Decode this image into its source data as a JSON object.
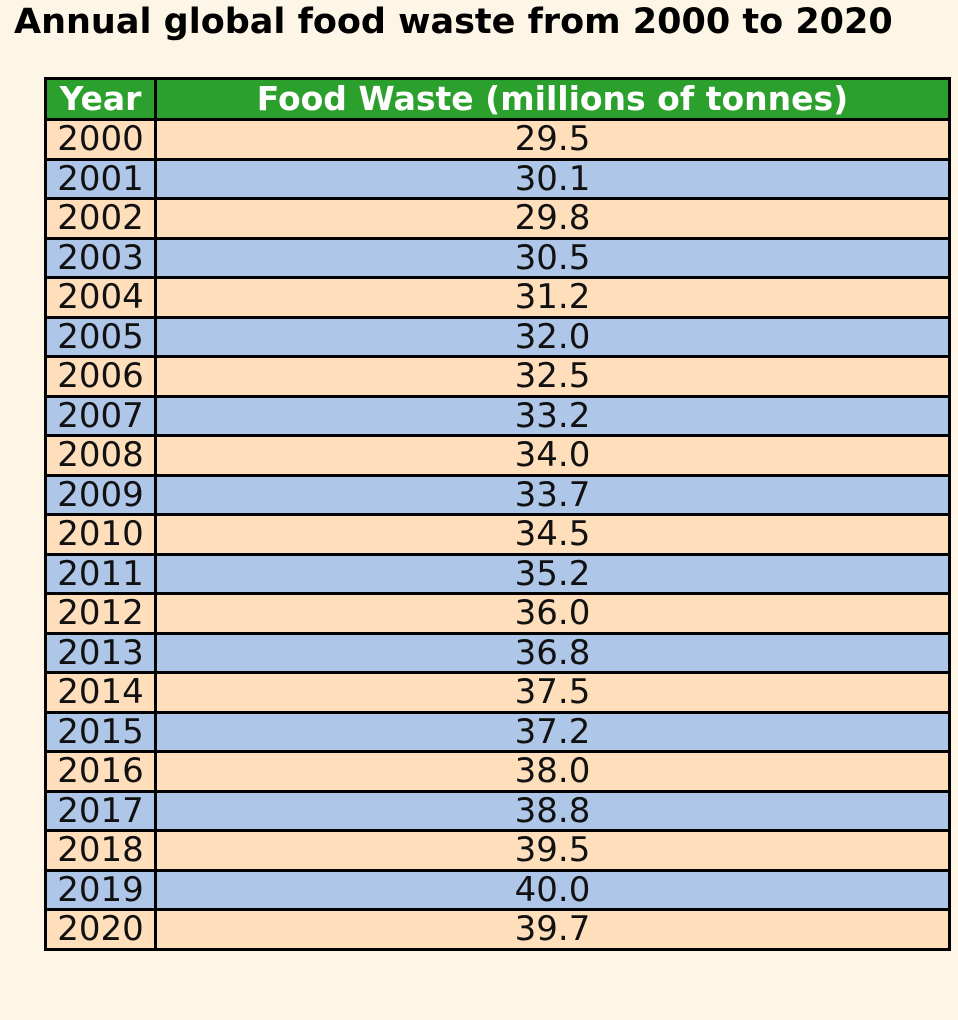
{
  "colors": {
    "background": "#fdf5e6",
    "header_fill": "#2ca02c",
    "header_text": "#ffffff",
    "row_odd": "#ffdfbb",
    "row_even": "#aec6e8",
    "border": "#000000"
  },
  "chart_data": {
    "type": "table",
    "title": "Annual global food waste from 2000 to 2020",
    "columns": [
      "Year",
      "Food Waste (millions of tonnes)"
    ],
    "rows": [
      [
        "2000",
        "29.5"
      ],
      [
        "2001",
        "30.1"
      ],
      [
        "2002",
        "29.8"
      ],
      [
        "2003",
        "30.5"
      ],
      [
        "2004",
        "31.2"
      ],
      [
        "2005",
        "32.0"
      ],
      [
        "2006",
        "32.5"
      ],
      [
        "2007",
        "33.2"
      ],
      [
        "2008",
        "34.0"
      ],
      [
        "2009",
        "33.7"
      ],
      [
        "2010",
        "34.5"
      ],
      [
        "2011",
        "35.2"
      ],
      [
        "2012",
        "36.0"
      ],
      [
        "2013",
        "36.8"
      ],
      [
        "2014",
        "37.5"
      ],
      [
        "2015",
        "37.2"
      ],
      [
        "2016",
        "38.0"
      ],
      [
        "2017",
        "38.8"
      ],
      [
        "2018",
        "39.5"
      ],
      [
        "2019",
        "40.0"
      ],
      [
        "2020",
        "39.7"
      ]
    ]
  }
}
